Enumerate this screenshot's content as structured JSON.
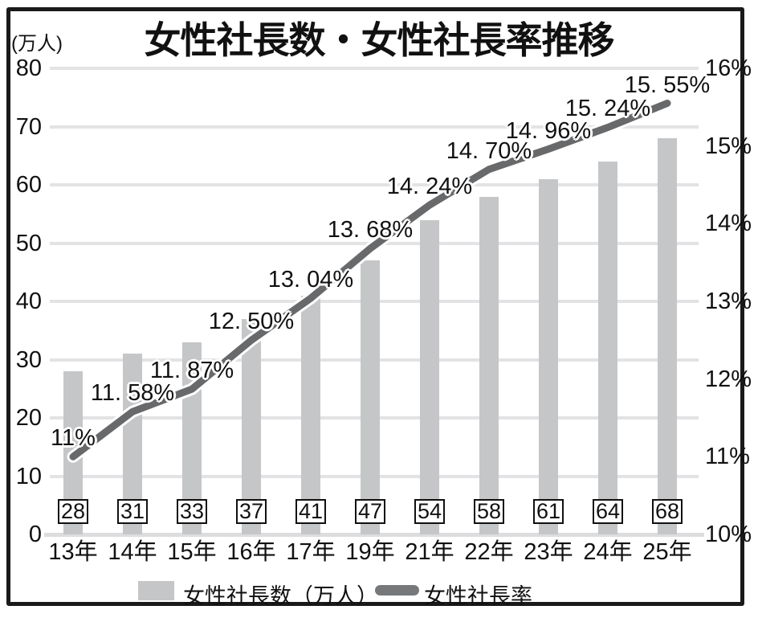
{
  "title": "女性社長数・女性社長率推移",
  "unit_label": "(万人)",
  "chart_data": {
    "type": "bar",
    "title": "女性社長数・女性社長率推移",
    "categories": [
      "13年",
      "14年",
      "15年",
      "16年",
      "17年",
      "19年",
      "21年",
      "22年",
      "23年",
      "24年",
      "25年"
    ],
    "series": [
      {
        "name": "女性社長数（万人）",
        "type": "bar",
        "values": [
          28,
          31,
          33,
          37,
          41,
          47,
          54,
          58,
          61,
          64,
          68
        ],
        "value_label_style": "boxed",
        "color": "#c5c6c8"
      },
      {
        "name": "女性社長率",
        "type": "line",
        "values": [
          11.0,
          11.58,
          11.87,
          12.5,
          13.04,
          13.68,
          14.24,
          14.7,
          14.96,
          15.24,
          15.55
        ],
        "labels": [
          "11%",
          "11. 58%",
          "11. 87%",
          "12. 50%",
          "13. 04%",
          "13. 68%",
          "14. 24%",
          "14. 70%",
          "14. 96%",
          "15. 24%",
          "15. 55%"
        ],
        "color": "#68696b"
      }
    ],
    "left_axis": {
      "label": "(万人)",
      "min": 0,
      "max": 80,
      "tick_step": 10,
      "ticks": [
        "0",
        "10",
        "20",
        "30",
        "40",
        "50",
        "60",
        "70",
        "80"
      ]
    },
    "right_axis": {
      "min": 10,
      "max": 16,
      "tick_step": 1,
      "ticks": [
        "10%",
        "11%",
        "12%",
        "13%",
        "14%",
        "15%",
        "16%"
      ]
    },
    "grid": "horizontal",
    "legend_position": "bottom",
    "colors": {
      "bar": "#c5c6c8",
      "line": "#68696b",
      "grid": "#e3e3e5",
      "text": "#111111",
      "frame": "#1a1a1a"
    }
  },
  "legend": {
    "items": [
      {
        "label": "女性社長数（万人）"
      },
      {
        "label": "女性社長率"
      }
    ]
  }
}
